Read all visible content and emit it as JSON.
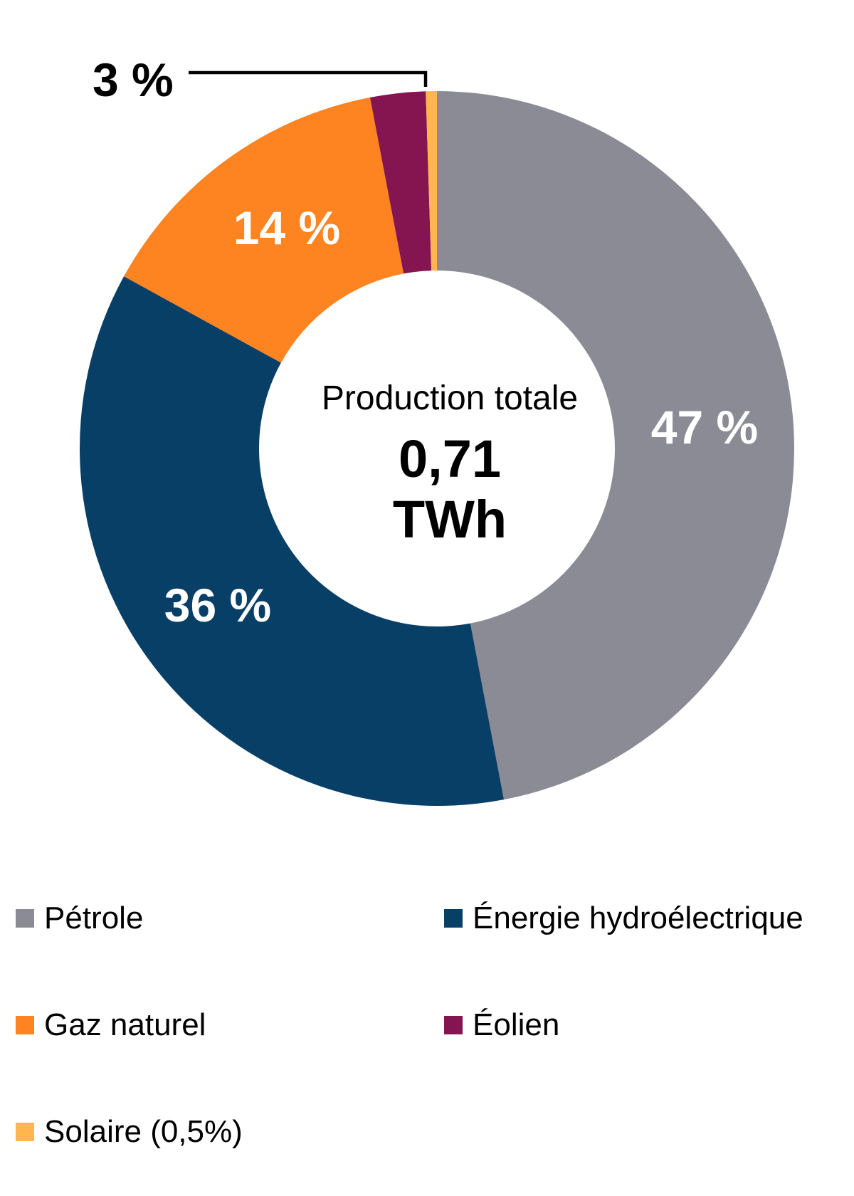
{
  "chart_data": {
    "type": "pie",
    "subtype": "donut",
    "title": "",
    "center_label": {
      "line1": "Production totale",
      "value": "0,71",
      "unit": "TWh"
    },
    "categories": [
      "Pétrole",
      "Énergie hydroélectrique",
      "Gaz naturel",
      "Éolien",
      "Solaire (0,5%)"
    ],
    "values": [
      47,
      36,
      14,
      2.5,
      0.5
    ],
    "data_labels": [
      "47 %",
      "36 %",
      "14 %",
      "3 %",
      ""
    ],
    "colors": [
      "#8B8B95",
      "#083F66",
      "#FE8321",
      "#841550",
      "#FFB74D"
    ],
    "start_angle_deg": 0,
    "direction": "clockwise",
    "legend_position": "bottom",
    "callout": {
      "label": "3 %",
      "series": "Éolien"
    }
  },
  "legend": {
    "items": [
      {
        "label": "Pétrole",
        "color": "#8B8B95"
      },
      {
        "label": "Énergie hydroélectrique",
        "color": "#083F66"
      },
      {
        "label": "Gaz naturel",
        "color": "#FE8321"
      },
      {
        "label": "Éolien",
        "color": "#841550"
      },
      {
        "label": "Solaire (0,5%)",
        "color": "#FFB74D"
      }
    ]
  }
}
